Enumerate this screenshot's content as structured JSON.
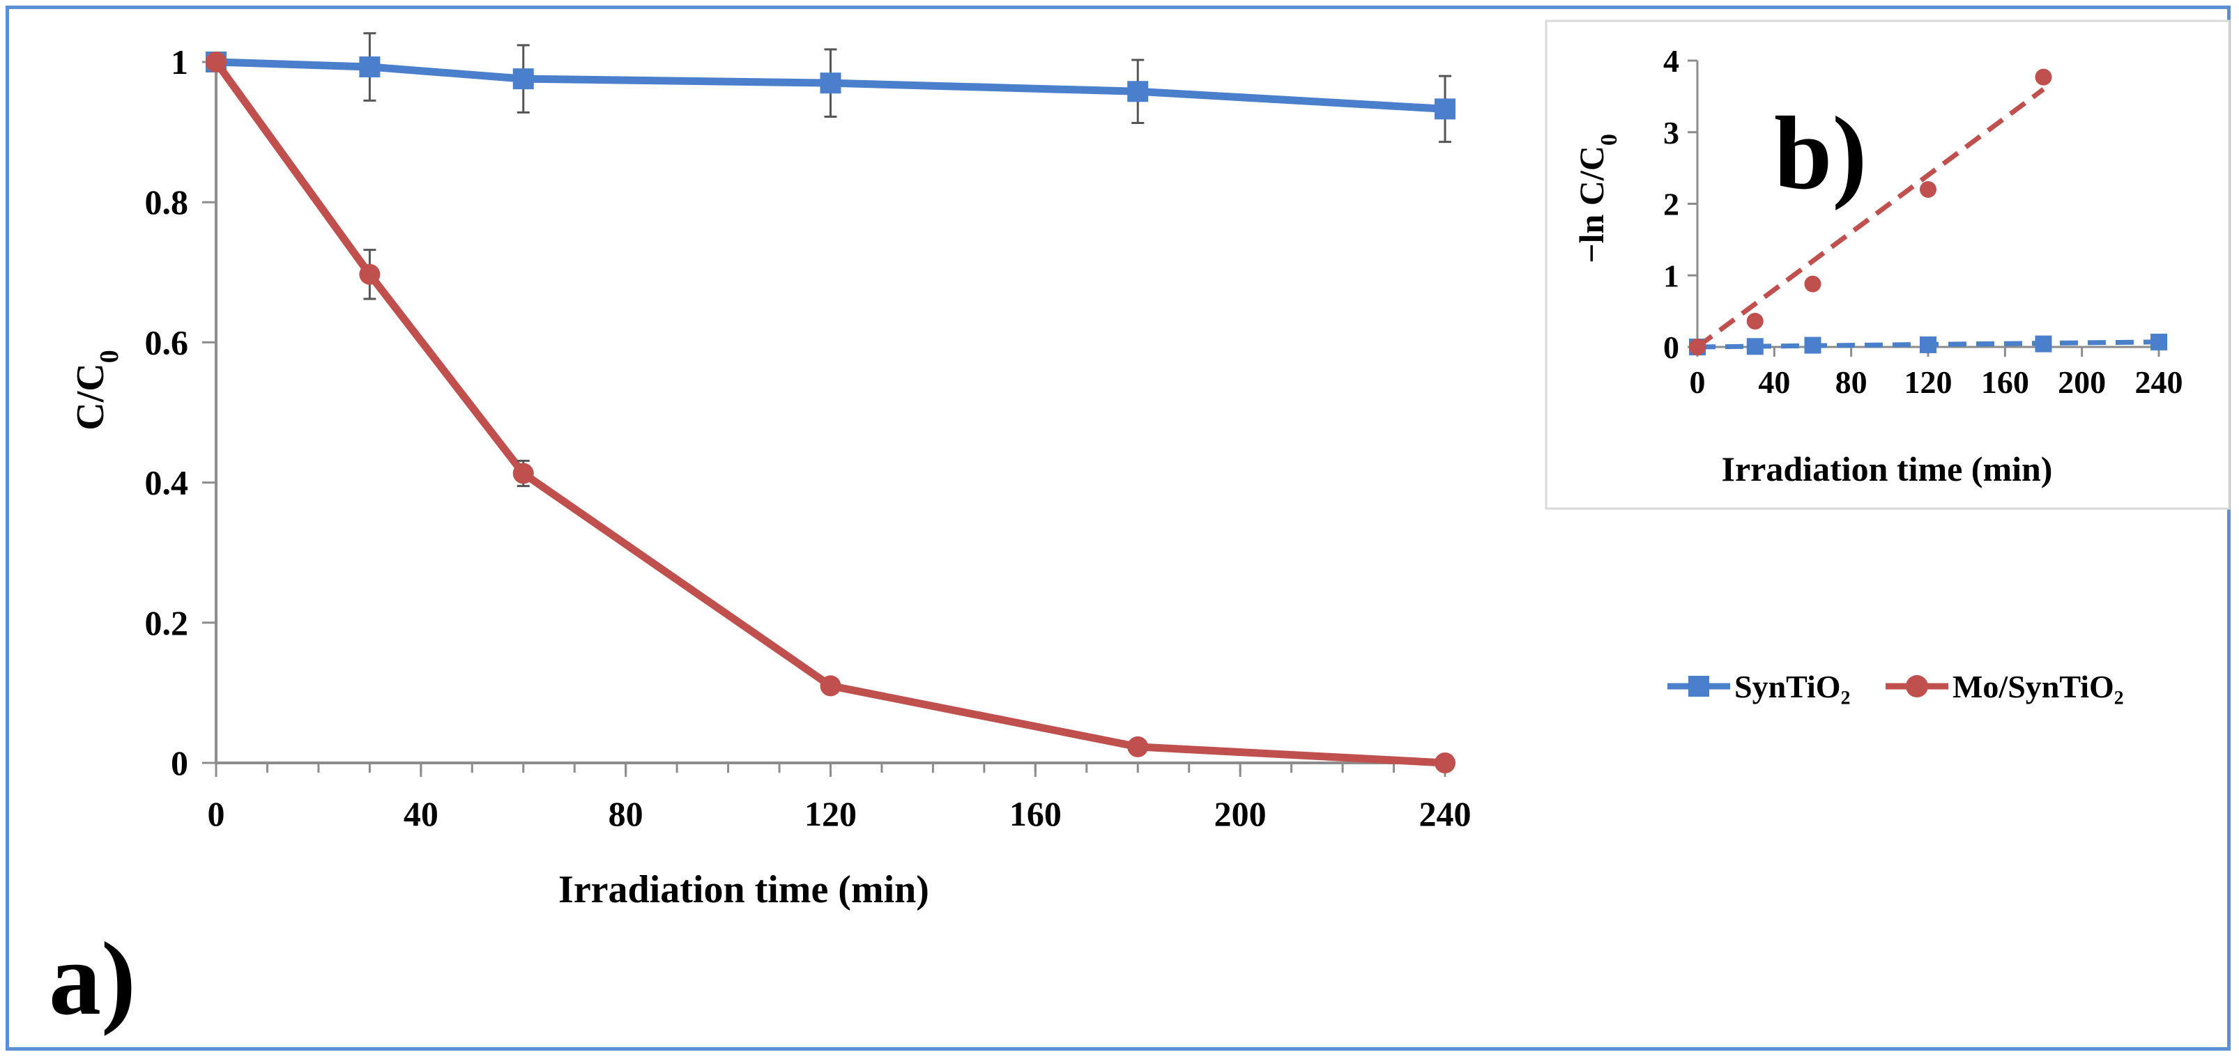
{
  "colors": {
    "blue": "#4a7fcb",
    "red": "#c0504d",
    "frame": "#5b8fd6",
    "axis": "#8c8c8c"
  },
  "panel_labels": {
    "a": "a)",
    "b": "b)"
  },
  "legend": {
    "placement": "right",
    "items": [
      {
        "label": "SynTiO₂",
        "color": "#4a7fcb",
        "marker": "square"
      },
      {
        "label": "Mo/SynTiO₂",
        "color": "#c0504d",
        "marker": "circle"
      }
    ]
  },
  "chart_data": [
    {
      "id": "a",
      "type": "line",
      "title": "",
      "xlabel": "Irradiation time (min)",
      "ylabel_main": "C/C",
      "ylabel_sub": "0",
      "xlim": [
        0,
        240
      ],
      "ylim": [
        0,
        1
      ],
      "xticks": [
        0,
        40,
        80,
        120,
        160,
        200,
        240
      ],
      "x_minor_step": 10,
      "yticks": [
        0,
        0.2,
        0.4,
        0.6,
        0.8,
        1
      ],
      "ytick_labels": [
        "0",
        "0.2",
        "0.4",
        "0.6",
        "0.8",
        "1"
      ],
      "grid": false,
      "series": [
        {
          "name": "SynTiO₂",
          "color": "#4a7fcb",
          "marker": "square",
          "x": [
            0,
            30,
            60,
            120,
            180,
            240
          ],
          "y": [
            1.0,
            0.993,
            0.976,
            0.97,
            0.958,
            0.933
          ],
          "err": [
            0,
            0.048,
            0.048,
            0.048,
            0.045,
            0.047
          ]
        },
        {
          "name": "Mo/SynTiO₂",
          "color": "#c0504d",
          "marker": "circle",
          "x": [
            0,
            30,
            60,
            120,
            180,
            240
          ],
          "y": [
            1.0,
            0.697,
            0.413,
            0.11,
            0.023,
            0.0
          ],
          "err": [
            0,
            0.035,
            0.018,
            0,
            0,
            0
          ]
        }
      ]
    },
    {
      "id": "b",
      "type": "scatter",
      "title": "",
      "xlabel": "Irradiation time (min)",
      "ylabel_main": "−ln C/C",
      "ylabel_sub": "0",
      "xlim": [
        0,
        240
      ],
      "ylim": [
        0,
        4
      ],
      "xticks": [
        0,
        40,
        80,
        120,
        160,
        200,
        240
      ],
      "yticks": [
        0,
        1,
        2,
        3,
        4
      ],
      "grid": false,
      "series": [
        {
          "name": "SynTiO₂",
          "color": "#4a7fcb",
          "marker": "square",
          "x": [
            0,
            30,
            60,
            120,
            180,
            240
          ],
          "y": [
            0,
            0.007,
            0.024,
            0.03,
            0.043,
            0.069
          ],
          "fit": {
            "x": [
              0,
              240
            ],
            "y": [
              0,
              0.07
            ]
          }
        },
        {
          "name": "Mo/SynTiO₂",
          "color": "#c0504d",
          "marker": "circle",
          "x": [
            0,
            30,
            60,
            120,
            180
          ],
          "y": [
            0,
            0.36,
            0.88,
            2.2,
            3.77
          ],
          "fit": {
            "x": [
              0,
              180
            ],
            "y": [
              0,
              3.6
            ]
          }
        }
      ]
    }
  ]
}
